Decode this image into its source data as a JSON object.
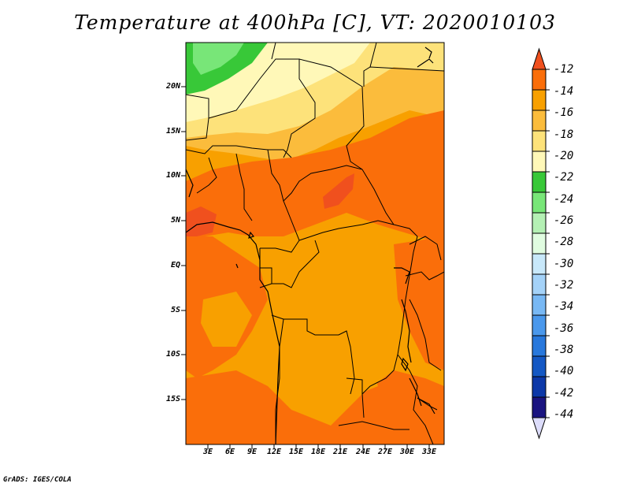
{
  "title": "Temperature at 400hPa [C], VT: 2020010103",
  "credit": "GrADS: IGES/COLA",
  "map": {
    "lat_labels": [
      "20N",
      "15N",
      "10N",
      "5N",
      "EQ",
      "5S",
      "10S",
      "15S"
    ],
    "lon_labels": [
      "3E",
      "6E",
      "9E",
      "12E",
      "15E",
      "18E",
      "21E",
      "24E",
      "27E",
      "30E",
      "33E"
    ]
  },
  "colorbar": {
    "labels": [
      "-12",
      "-14",
      "-16",
      "-18",
      "-20",
      "-22",
      "-24",
      "-26",
      "-28",
      "-30",
      "-32",
      "-34",
      "-36",
      "-38",
      "-40",
      "-42",
      "-44"
    ],
    "colors": [
      "#f0501e",
      "#fa6e0a",
      "#f8a000",
      "#fbbc3c",
      "#fde27a",
      "#fff8b8",
      "#38c838",
      "#78e678",
      "#b4f0b4",
      "#e0fce0",
      "#c8e8fa",
      "#a4d2f8",
      "#78b8f4",
      "#4a98ec",
      "#2878dc",
      "#1458c4",
      "#0c38a8",
      "#1a1480",
      "#dcdcfa"
    ]
  }
}
